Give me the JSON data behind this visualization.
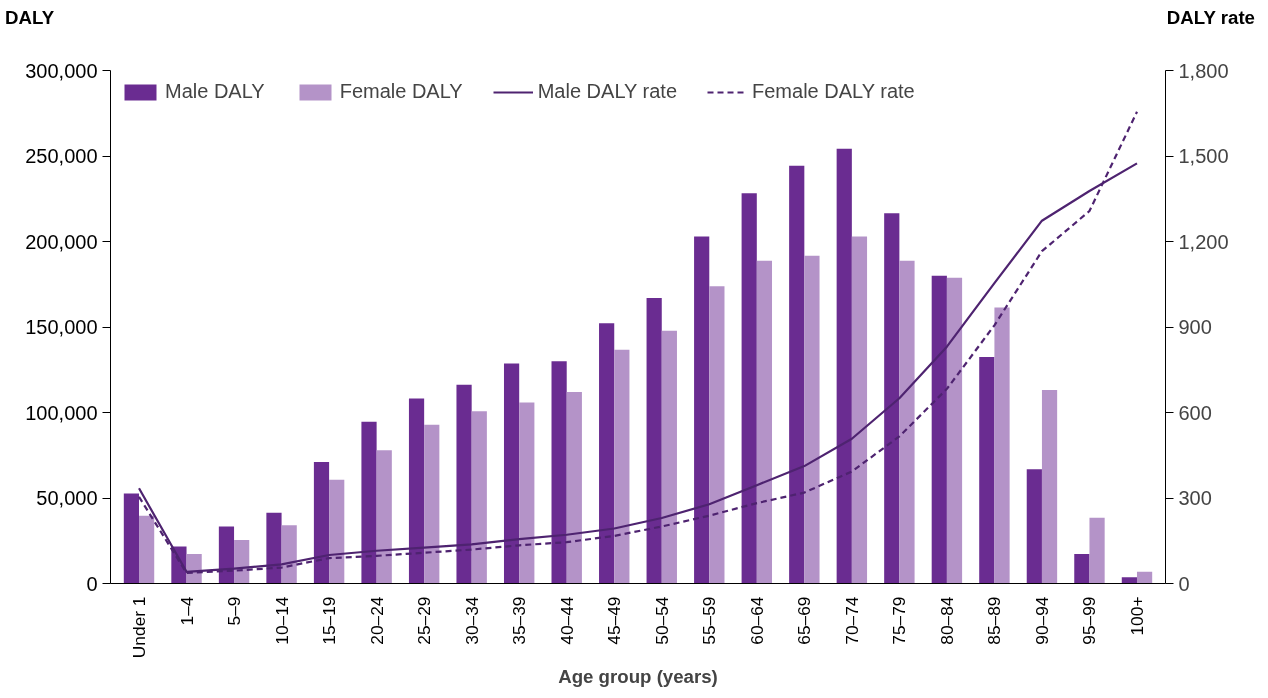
{
  "chart_data": {
    "type": "bar",
    "xlabel": "Age group (years)",
    "ylabel": "DALY",
    "y2label": "DALY rate",
    "categories": [
      "Under 1",
      "1–4",
      "5–9",
      "10–14",
      "15–19",
      "20–24",
      "25–29",
      "30–34",
      "35–39",
      "40–44",
      "45–49",
      "50–54",
      "55–59",
      "60–64",
      "65–69",
      "70–74",
      "75–79",
      "80–84",
      "85–89",
      "90–94",
      "95–99",
      "100+"
    ],
    "series": [
      {
        "name": "Male DALY",
        "color": "#6a2c91",
        "values": [
          52600,
          21600,
          33400,
          41400,
          71100,
          94600,
          108200,
          116300,
          128600,
          129900,
          152200,
          167000,
          202900,
          228200,
          244300,
          254200,
          216500,
          180000,
          132400,
          66800,
          17300,
          3700
        ]
      },
      {
        "name": "Female DALY",
        "color": "#b493c8",
        "values": [
          39600,
          17300,
          25400,
          34000,
          60600,
          77900,
          92800,
          100800,
          105800,
          112000,
          136700,
          147800,
          173800,
          188700,
          191700,
          202900,
          188700,
          178800,
          161400,
          113200,
          38400,
          6800
        ]
      },
      {
        "name": "Male DALY rate",
        "type": "line",
        "axis": "y2",
        "line_style": "solid",
        "color": "#4e2370",
        "values": [
          334,
          41,
          52,
          67,
          100,
          115,
          126,
          137,
          156,
          171,
          193,
          230,
          278,
          345,
          412,
          508,
          650,
          831,
          1054,
          1273,
          1377,
          1474
        ]
      },
      {
        "name": "Female DALY rate",
        "type": "line",
        "axis": "y2",
        "line_style": "dashed",
        "color": "#4e2370",
        "values": [
          304,
          37,
          45,
          56,
          89,
          97,
          108,
          119,
          134,
          145,
          167,
          200,
          238,
          282,
          319,
          393,
          516,
          683,
          906,
          1166,
          1307,
          1655
        ]
      }
    ],
    "ylim": [
      0,
      300000
    ],
    "yticks": [
      {
        "value": 0,
        "label": "0"
      },
      {
        "value": 50000,
        "label": "50,000"
      },
      {
        "value": 100000,
        "label": "100,000"
      },
      {
        "value": 150000,
        "label": "150,000"
      },
      {
        "value": 200000,
        "label": "200,000"
      },
      {
        "value": 250000,
        "label": "250,000"
      },
      {
        "value": 300000,
        "label": "300,000"
      }
    ],
    "y2lim": [
      0,
      1800
    ],
    "y2ticks": [
      0,
      300,
      600,
      900,
      {
        "value": 1200,
        "label": "1,200"
      },
      {
        "value": 1500,
        "label": "1,500"
      },
      {
        "value": 1800,
        "label": "1,800"
      }
    ],
    "legend": "top left"
  }
}
